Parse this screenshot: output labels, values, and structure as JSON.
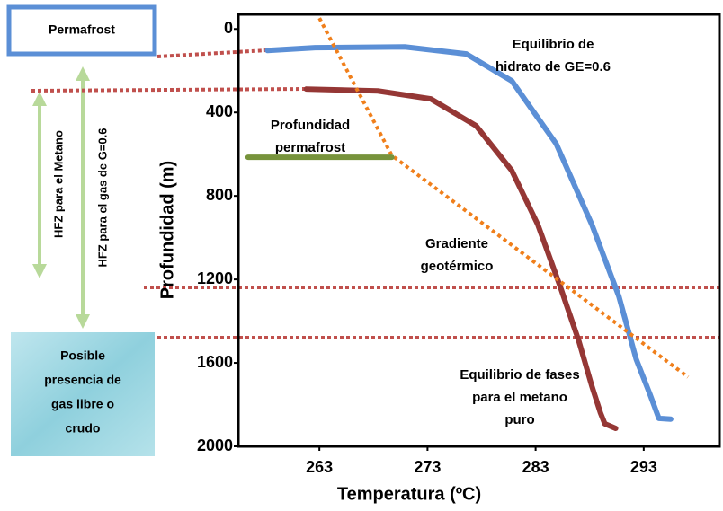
{
  "chart_data": {
    "type": "line",
    "xlabel": "Temperatura (ºC)",
    "ylabel": "Profundidad (m)",
    "xlim": [
      255.5,
      300
    ],
    "ylim": [
      -70,
      2000
    ],
    "y_inverted": true,
    "xticks": [
      263,
      273,
      283,
      293
    ],
    "yticks": [
      0,
      400,
      800,
      1200,
      1600,
      2000
    ],
    "series": [
      {
        "color": "#5b8fd6",
        "style": "solid",
        "x": [
          258.2,
          262.6,
          270.9,
          276.6,
          280.8,
          284.9,
          288.2,
          290.7,
          292.3,
          293.6,
          294.4,
          295.5
        ],
        "values": [
          103,
          90,
          86,
          120,
          249,
          550,
          937,
          1281,
          1582,
          1754,
          1866,
          1870
        ]
      },
      {
        "color": "#953735",
        "style": "solid",
        "x": [
          261.8,
          268.4,
          273.3,
          277.5,
          280.8,
          283.2,
          285.3,
          287.0,
          288.2,
          289.0,
          289.4,
          290.4
        ],
        "values": [
          288,
          297,
          335,
          464,
          679,
          937,
          1238,
          1496,
          1711,
          1840,
          1892,
          1914
        ]
      },
      {
        "color": "#f07f1b",
        "style": "dotted",
        "x": [
          263,
          269.7,
          297.1
        ],
        "values": [
          -52,
          606,
          1668
        ]
      },
      {
        "color": "#77933c",
        "style": "solid",
        "x": [
          256.4,
          269.7
        ],
        "values": [
          615,
          615
        ]
      }
    ],
    "annotations": [
      {
        "lines": [
          "Equilibrio de",
          "hidrato de GE=0.6"
        ]
      },
      {
        "lines": [
          "Profundidad",
          "permafrost"
        ]
      },
      {
        "lines": [
          "Gradiente",
          "geotérmico"
        ]
      },
      {
        "lines": [
          "Equilibrio de fases",
          "para el metano",
          "puro"
        ]
      }
    ]
  },
  "side_labels": {
    "permafrost": "Permafrost",
    "hfz_methane": "HFZ para el Metano",
    "hfz_gas": "HFZ para el gas de G=0.6",
    "gas_box": [
      "Posible",
      "presencia de",
      "gas libre o",
      "crudo"
    ]
  }
}
